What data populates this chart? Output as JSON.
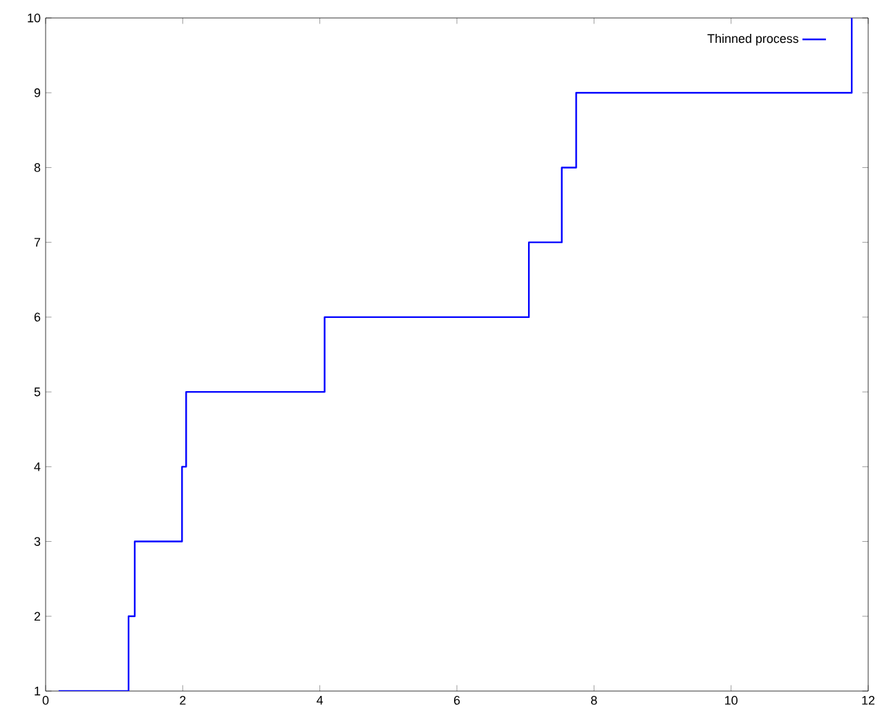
{
  "chart_data": {
    "type": "step",
    "series": [
      {
        "name": "Thinned process",
        "color": "#0000ff",
        "x": [
          0.19,
          1.21,
          1.3,
          1.99,
          2.05,
          4.07,
          7.05,
          7.53,
          7.74,
          11.76
        ],
        "values": [
          1,
          2,
          3,
          4,
          5,
          6,
          7,
          8,
          9,
          10
        ]
      }
    ],
    "xlim": [
      0,
      12
    ],
    "ylim": [
      1,
      10
    ],
    "xticks": [
      0,
      2,
      4,
      6,
      8,
      10,
      12
    ],
    "yticks": [
      1,
      2,
      3,
      4,
      5,
      6,
      7,
      8,
      9,
      10
    ],
    "grid": false,
    "legend": "top right"
  }
}
